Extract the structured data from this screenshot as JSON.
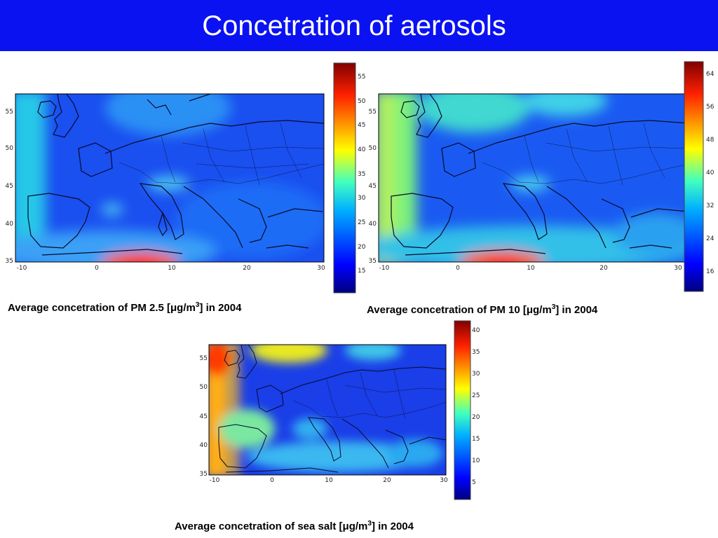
{
  "title": "Concetration of aerosols",
  "colors": {
    "title_bg": "#0a12f2",
    "colormap": [
      "#00007f",
      "#0000ff",
      "#0080ff",
      "#00ffff",
      "#7fff7f",
      "#ffff00",
      "#ff8000",
      "#ff0000",
      "#7f0000"
    ]
  },
  "maps": [
    {
      "id": "pm25",
      "caption_pre": "Average concetration of  PM 2.5  [μg/m",
      "caption_sup": "3",
      "caption_post": "] in  2004",
      "lat_ticks": [
        "55",
        "50",
        "45",
        "40",
        "35"
      ],
      "lon_ticks": [
        "-10",
        "0",
        "10",
        "20",
        "30"
      ],
      "colorbar_ticks": [
        "55",
        "50",
        "45",
        "40",
        "35",
        "30",
        "25",
        "20",
        "15"
      ]
    },
    {
      "id": "pm10",
      "caption_pre": "Average concetration of  PM 10  [μg/m",
      "caption_sup": "3",
      "caption_post": "] in  2004",
      "lat_ticks": [
        "55",
        "50",
        "45",
        "40",
        "35"
      ],
      "lon_ticks": [
        "-10",
        "0",
        "10",
        "20",
        "30"
      ],
      "colorbar_ticks": [
        "64",
        "56",
        "48",
        "40",
        "32",
        "24",
        "16"
      ]
    },
    {
      "id": "seasalt",
      "caption_pre": "Average concetration of  sea salt  [μg/m",
      "caption_sup": "3",
      "caption_post": "] in  2004",
      "lat_ticks": [
        "55",
        "50",
        "45",
        "40",
        "35"
      ],
      "lon_ticks": [
        "-10",
        "0",
        "10",
        "20",
        "30"
      ],
      "colorbar_ticks": [
        "40",
        "35",
        "30",
        "25",
        "20",
        "15",
        "10",
        "5"
      ]
    }
  ]
}
